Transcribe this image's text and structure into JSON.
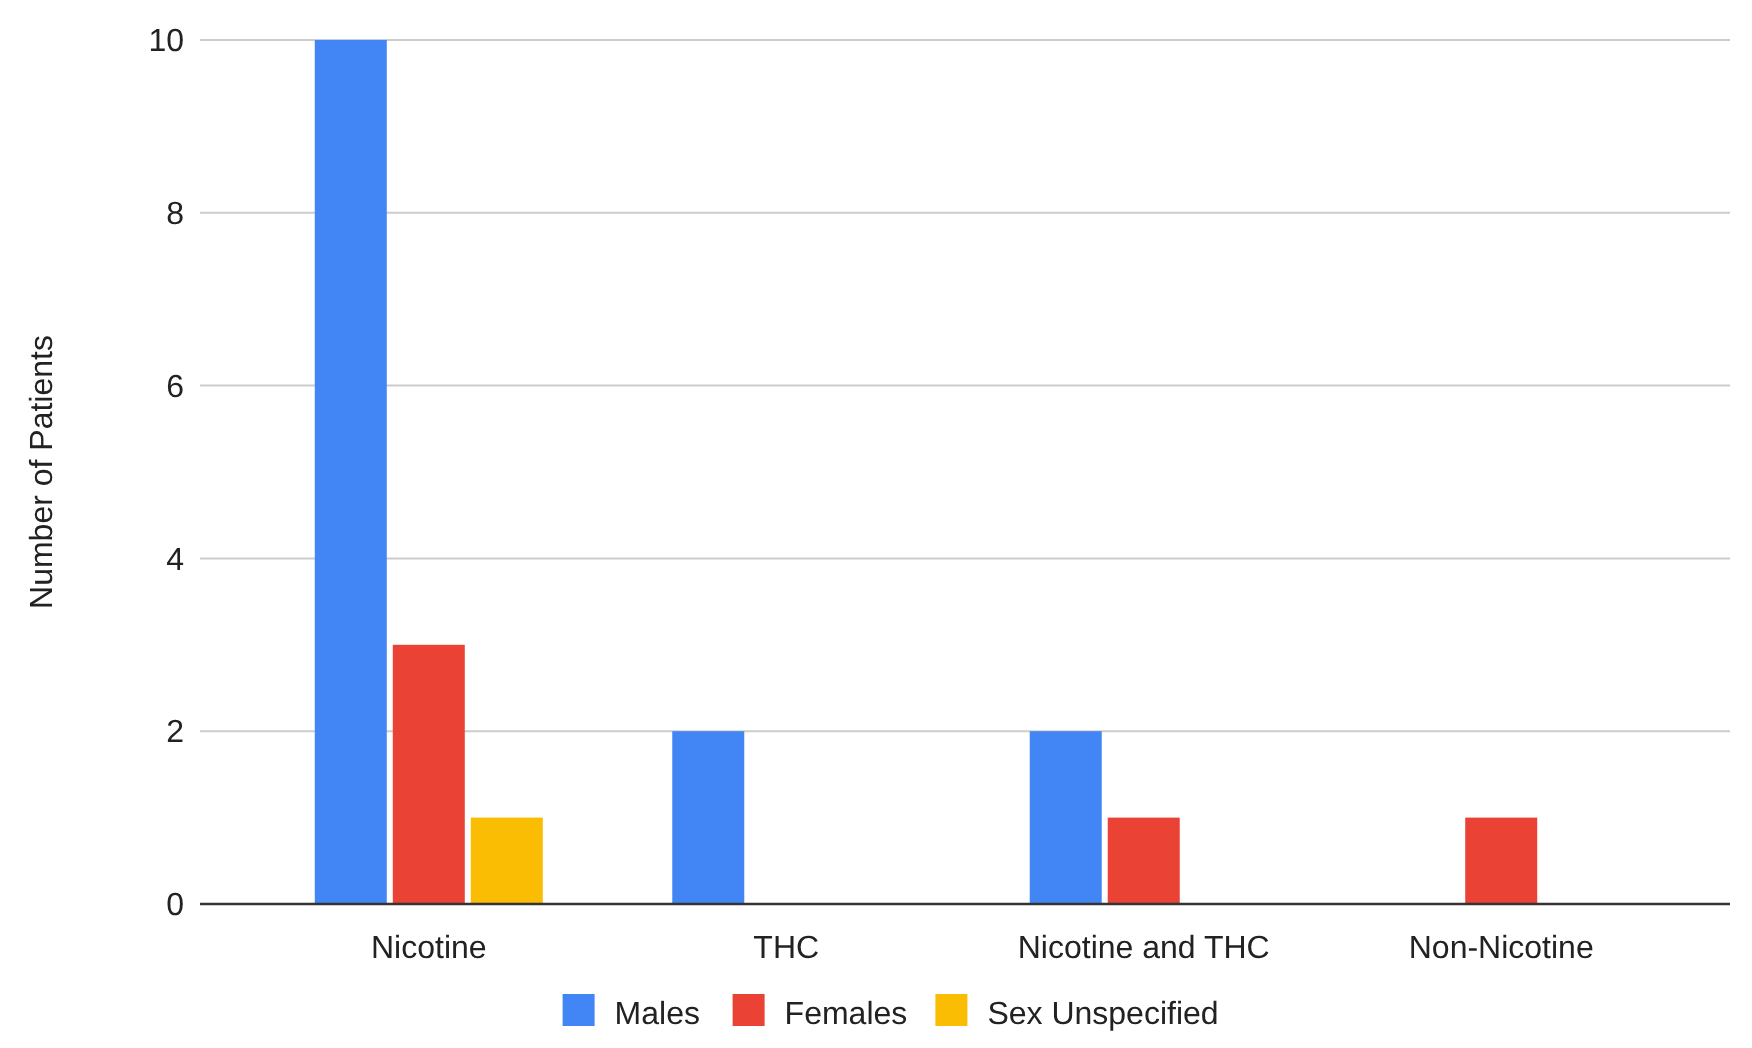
{
  "chart_data": {
    "type": "bar",
    "ylabel": "Number of Patients",
    "categories": [
      "Nicotine",
      "THC",
      "Nicotine and THC",
      "Non-Nicotine"
    ],
    "series": [
      {
        "name": "Males",
        "color": "#4285f4",
        "values": [
          10,
          2,
          2,
          null
        ]
      },
      {
        "name": "Females",
        "color": "#ea4335",
        "values": [
          3,
          null,
          1,
          1
        ]
      },
      {
        "name": "Sex Unspecified",
        "color": "#fbbc04",
        "values": [
          1,
          null,
          null,
          null
        ]
      }
    ],
    "ylim": [
      0,
      10
    ],
    "yticks": [
      0,
      2,
      4,
      6,
      8,
      10
    ],
    "grid": "y",
    "legend": "bottom"
  }
}
